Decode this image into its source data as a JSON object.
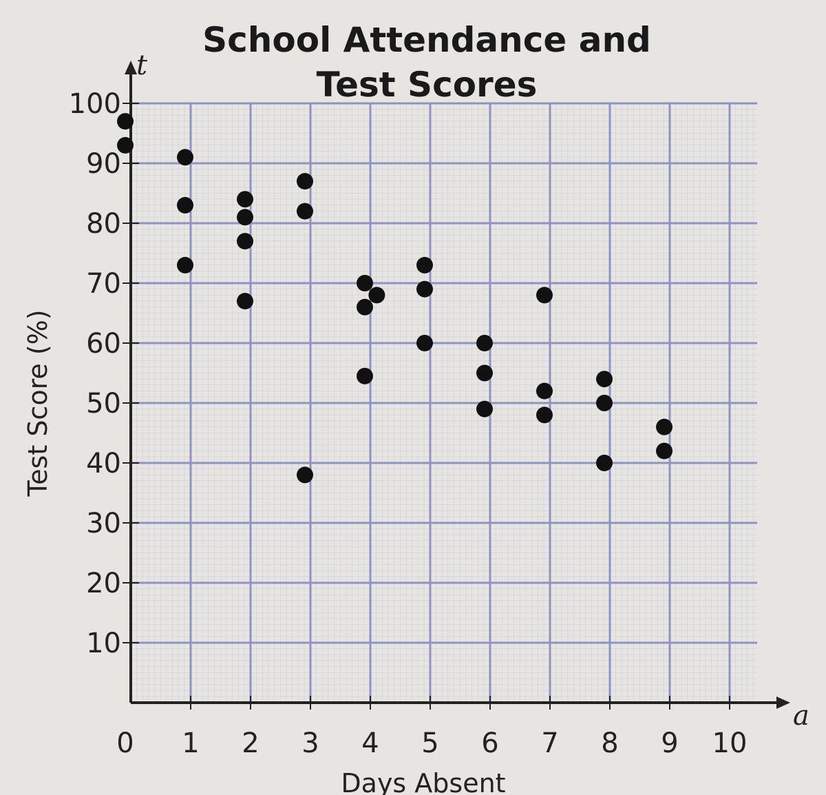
{
  "chart_data": {
    "type": "scatter",
    "title": [
      "School Attendance and",
      "Test Scores"
    ],
    "xlabel": "Days Absent",
    "ylabel": "Test Score (%)",
    "x_var": "a",
    "y_var": "t",
    "xlim": [
      0,
      10
    ],
    "ylim": [
      0,
      100
    ],
    "x_ticks": [
      "0",
      "1",
      "2",
      "3",
      "4",
      "5",
      "6",
      "7",
      "8",
      "9",
      "10"
    ],
    "y_ticks": [
      "10",
      "20",
      "30",
      "40",
      "50",
      "60",
      "70",
      "80",
      "90",
      "100"
    ],
    "grid": true,
    "marker_color": "#111111",
    "grid_color": "#8f93c4",
    "points": [
      {
        "x": 0,
        "y": 97
      },
      {
        "x": 0,
        "y": 93
      },
      {
        "x": 1,
        "y": 91
      },
      {
        "x": 1,
        "y": 83
      },
      {
        "x": 1,
        "y": 73
      },
      {
        "x": 2,
        "y": 84
      },
      {
        "x": 2,
        "y": 81
      },
      {
        "x": 2,
        "y": 77
      },
      {
        "x": 2,
        "y": 67
      },
      {
        "x": 3,
        "y": 87
      },
      {
        "x": 3,
        "y": 82
      },
      {
        "x": 3,
        "y": 38
      },
      {
        "x": 4,
        "y": 70
      },
      {
        "x": 4.2,
        "y": 68
      },
      {
        "x": 4,
        "y": 66
      },
      {
        "x": 4,
        "y": 54.5
      },
      {
        "x": 5,
        "y": 73
      },
      {
        "x": 5,
        "y": 69
      },
      {
        "x": 5,
        "y": 60
      },
      {
        "x": 6,
        "y": 60
      },
      {
        "x": 6,
        "y": 55
      },
      {
        "x": 6,
        "y": 49
      },
      {
        "x": 7,
        "y": 68
      },
      {
        "x": 7,
        "y": 52
      },
      {
        "x": 7,
        "y": 48
      },
      {
        "x": 8,
        "y": 54
      },
      {
        "x": 8,
        "y": 50
      },
      {
        "x": 8,
        "y": 40
      },
      {
        "x": 9,
        "y": 46
      },
      {
        "x": 9,
        "y": 42
      }
    ]
  }
}
